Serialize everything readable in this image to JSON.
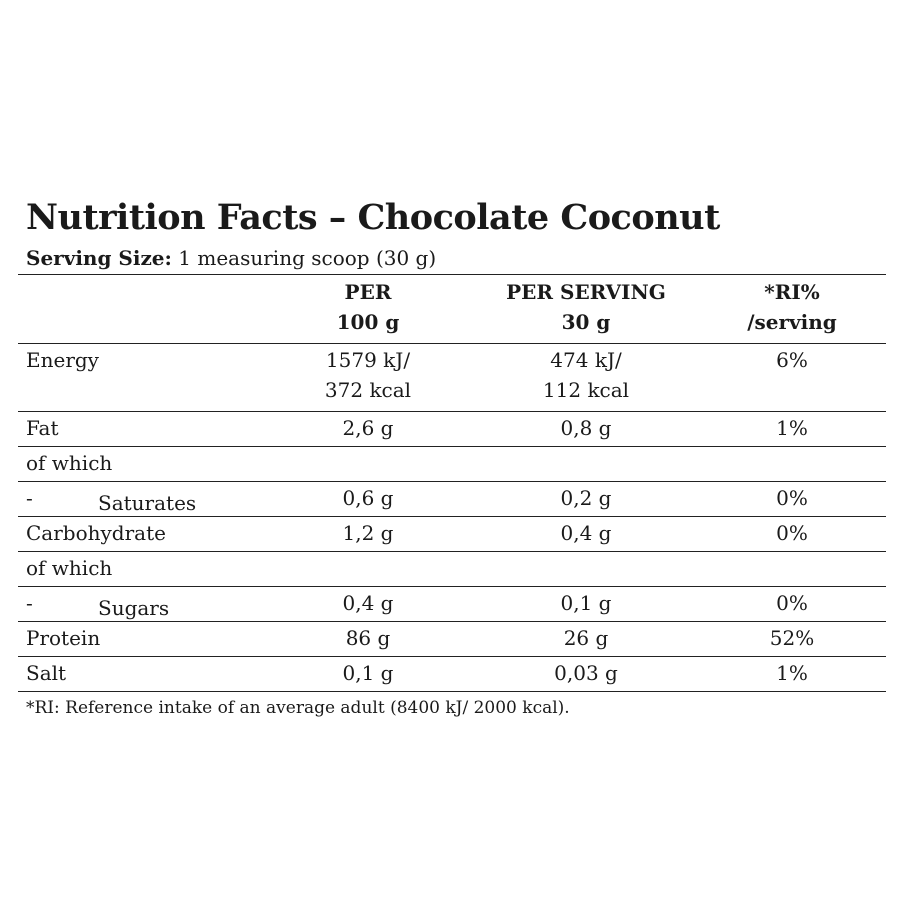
{
  "title": "Nutrition Facts – Chocolate Coconut",
  "serving": {
    "label": "Serving Size:",
    "value": "1 measuring scoop (30 g)"
  },
  "table": {
    "headers": [
      {
        "line1": "",
        "line2": ""
      },
      {
        "line1": "PER",
        "line2": "100 g"
      },
      {
        "line1": "PER SERVING",
        "line2": "30 g"
      },
      {
        "line1": "*RI%",
        "line2": "/serving"
      }
    ],
    "rows": [
      {
        "name": "Energy",
        "per100_line1": "1579 kJ/",
        "per100_line2": "372 kcal",
        "perServing_line1": "474 kJ/",
        "perServing_line2": "112 kcal",
        "ri": "6%"
      },
      {
        "name": "Fat",
        "per100": "2,6 g",
        "perServing": "0,8 g",
        "ri": "1%"
      },
      {
        "name": "of which",
        "per100": "",
        "perServing": "",
        "ri": ""
      },
      {
        "dash": "-",
        "name": "Saturates",
        "per100": "0,6 g",
        "perServing": "0,2 g",
        "ri": "0%"
      },
      {
        "name": "Carbohydrate",
        "per100": "1,2 g",
        "perServing": "0,4 g",
        "ri": "0%"
      },
      {
        "name": "of which",
        "per100": "",
        "perServing": "",
        "ri": ""
      },
      {
        "dash": "-",
        "name": "Sugars",
        "per100": "0,4 g",
        "perServing": "0,1 g",
        "ri": "0%"
      },
      {
        "name": "Protein",
        "per100": "86 g",
        "perServing": "26 g",
        "ri": "52%"
      },
      {
        "name": "Salt",
        "per100": "0,1 g",
        "perServing": "0,03 g",
        "ri": "1%"
      }
    ]
  },
  "footnote": "*RI: Reference intake of an average adult (8400 kJ/ 2000 kcal)."
}
